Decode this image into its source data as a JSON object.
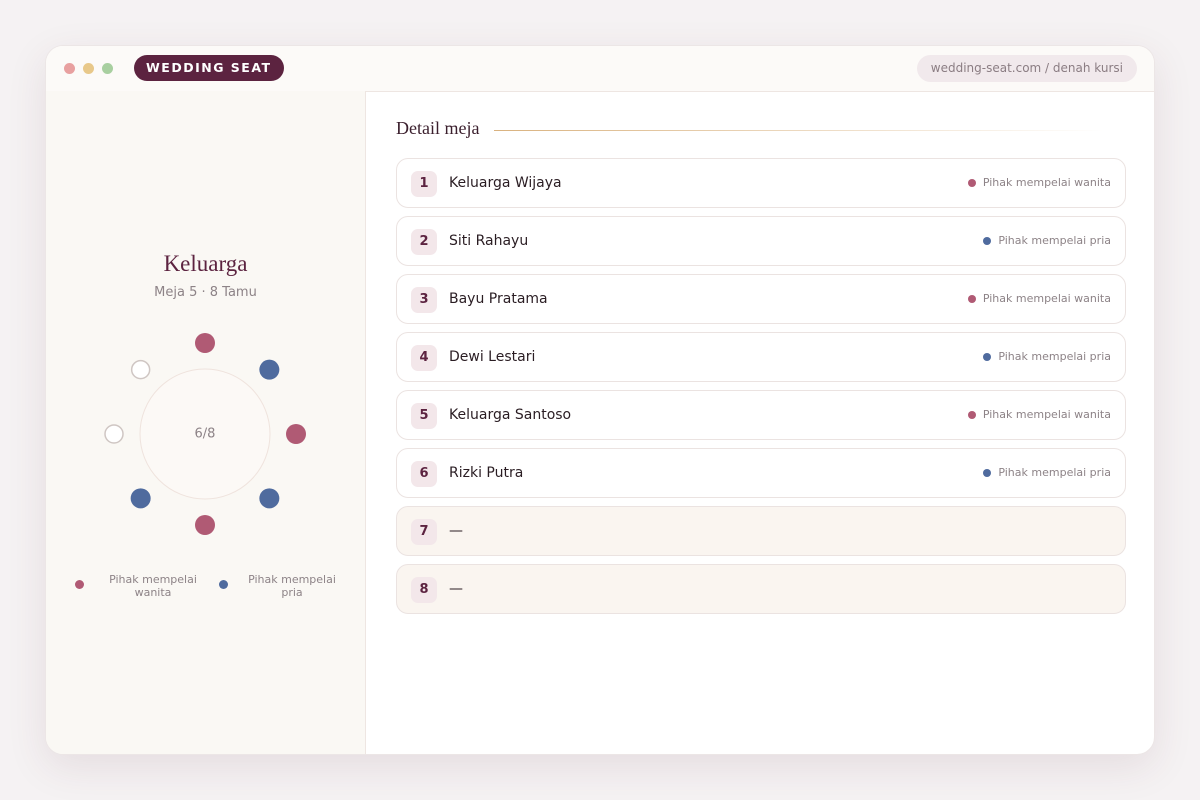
{
  "header": {
    "brand": "WEDDING SEAT",
    "url": "wedding-seat.com / denah kursi"
  },
  "seating": {
    "title": "Keluarga",
    "subtitle": "Meja 5 · 8 Tamu",
    "occupancy": "6/8"
  },
  "legend": [
    {
      "label": "Pihak mempelai wanita",
      "color": "#b05a74"
    },
    {
      "label": "Pihak mempelai pria",
      "color": "#4f6b9e"
    }
  ],
  "detail": {
    "title": "Detail meja",
    "rows": [
      {
        "number": 1,
        "name": "Keluarga Wijaya",
        "side": "Pihak mempelai wanita"
      },
      {
        "number": 2,
        "name": "Siti Rahayu",
        "side": "Pihak mempelai pria"
      },
      {
        "number": 3,
        "name": "Bayu Pratama",
        "side": "Pihak mempelai wanita"
      },
      {
        "number": 4,
        "name": "Dewi Lestari",
        "side": "Pihak mempelai pria"
      },
      {
        "number": 5,
        "name": "Keluarga Santoso",
        "side": "Pihak mempelai wanita"
      },
      {
        "number": 6,
        "name": "Rizki Putra",
        "side": "Pihak mempelai pria"
      },
      {
        "number": 7,
        "name": "—"
      },
      {
        "number": 8,
        "name": "—"
      }
    ]
  }
}
